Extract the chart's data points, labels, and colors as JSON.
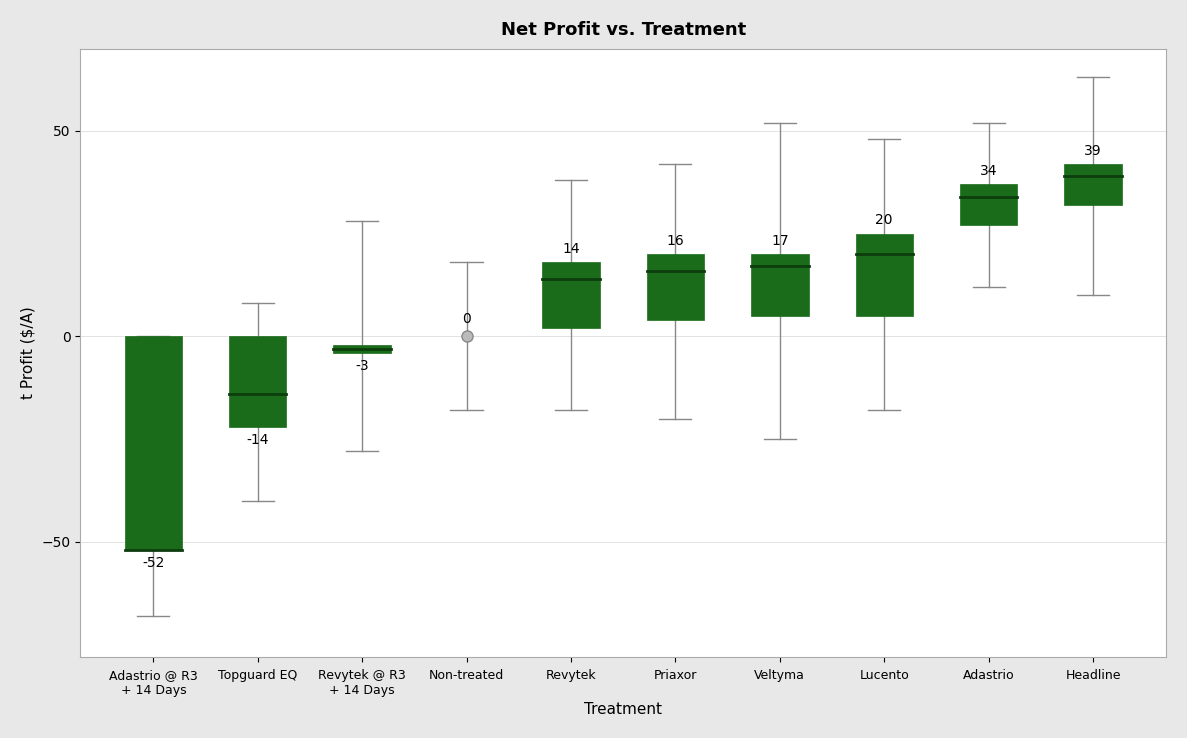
{
  "title": "Net Profit vs. Treatment",
  "xlabel": "Treatment",
  "ylabel": "t Profit ($/A)",
  "box_color": "#1a6b1a",
  "whisker_color": "#888888",
  "background_color": "#e8e8e8",
  "plot_background": "#ffffff",
  "ylim": [
    -78,
    70
  ],
  "yticks": [
    -50,
    0,
    50
  ],
  "categories": [
    "Adastrio @ R3\n+ 14 Days",
    "Topguard EQ",
    "Revytek @ R3\n+ 14 Days",
    "Non-treated",
    "Revytek",
    "Priaxor",
    "Veltyma",
    "Lucento",
    "Adastrio",
    "Headline"
  ],
  "means": [
    -52,
    -14,
    -3,
    0,
    14,
    16,
    17,
    20,
    34,
    39
  ],
  "q1": [
    -52,
    -22,
    -4,
    -1,
    2,
    4,
    5,
    5,
    27,
    32
  ],
  "q3": [
    0,
    0,
    -2,
    1,
    18,
    20,
    20,
    25,
    37,
    42
  ],
  "whisker_low": [
    -68,
    -40,
    -28,
    -18,
    -18,
    -20,
    -25,
    -18,
    12,
    10
  ],
  "whisker_high": [
    0,
    8,
    28,
    18,
    38,
    42,
    52,
    48,
    52,
    63
  ],
  "has_box": [
    true,
    true,
    true,
    false,
    true,
    true,
    true,
    true,
    true,
    true
  ],
  "non_treated_idx": 3,
  "label_above": [
    false,
    false,
    false,
    true,
    true,
    true,
    true,
    true,
    true,
    true
  ],
  "title_fontsize": 13,
  "label_fontsize": 11,
  "tick_fontsize": 10,
  "ann_fontsize": 10
}
